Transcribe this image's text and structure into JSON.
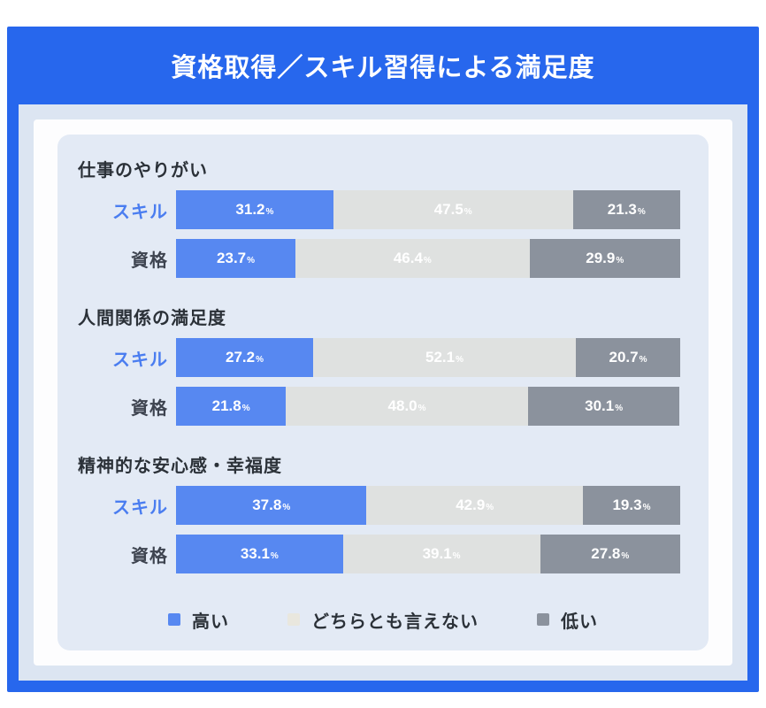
{
  "header": {
    "title": "資格取得／スキル習得による満足度"
  },
  "legend": [
    {
      "label": "高い",
      "color": "#5788f1"
    },
    {
      "label": "どちらとも言えない",
      "color": "#e9e7de"
    },
    {
      "label": "低い",
      "color": "#8b929d"
    }
  ],
  "colors": {
    "frame_blue": "#2767ed",
    "bar_high": "#5788f1",
    "bar_neutral": "#dfe1e0",
    "bar_low": "#8b929d",
    "legend_neutral": "#e9e7de",
    "label_skill_blue": "#4a7df0",
    "label_dark": "#3e4450",
    "panel_light_blue": "#e3eaf5",
    "card_inner_blue": "#dce5f2",
    "value_text": "#ffffff"
  },
  "chart_data": {
    "type": "bar",
    "orientation": "horizontal-stacked",
    "title": "資格取得／スキル習得による満足度",
    "unit": "%",
    "series_labels": [
      "高い",
      "どちらとも言えない",
      "低い"
    ],
    "series_colors": [
      "#5788f1",
      "#dfe1e0",
      "#8b929d"
    ],
    "xlim": [
      0,
      100
    ],
    "grid": false,
    "legend_position": "bottom",
    "groups": [
      {
        "title": "仕事のやりがい",
        "rows": [
          {
            "label": "スキル",
            "values": [
              31.2,
              47.5,
              21.3
            ]
          },
          {
            "label": "資格",
            "values": [
              23.7,
              46.4,
              29.9
            ]
          }
        ]
      },
      {
        "title": "人間関係の満足度",
        "rows": [
          {
            "label": "スキル",
            "values": [
              27.2,
              52.1,
              20.7
            ]
          },
          {
            "label": "資格",
            "values": [
              21.8,
              48.0,
              30.1
            ]
          }
        ]
      },
      {
        "title": "精神的な安心感・幸福度",
        "rows": [
          {
            "label": "スキル",
            "values": [
              37.8,
              42.9,
              19.3
            ]
          },
          {
            "label": "資格",
            "values": [
              33.1,
              39.1,
              27.8
            ]
          }
        ]
      }
    ]
  }
}
